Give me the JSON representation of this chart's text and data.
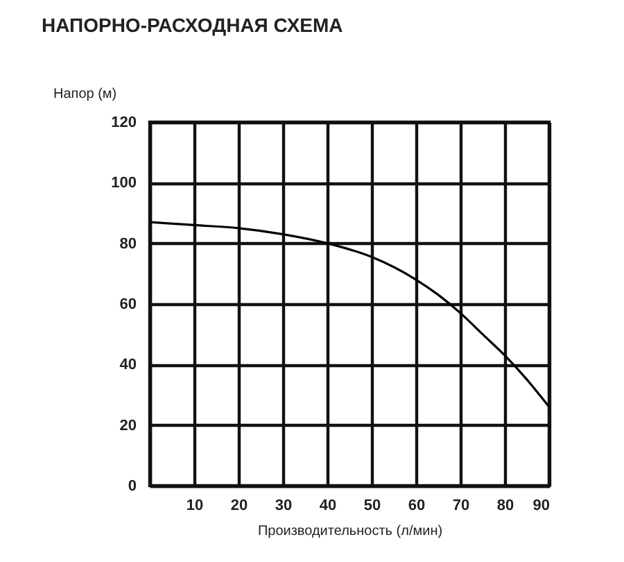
{
  "chart_data": {
    "type": "line",
    "title": "НАПОРНО-РАСХОДНАЯ СХЕМА",
    "xlabel": "Производительность (л/мин)",
    "ylabel": "Напор (м)",
    "x": [
      0,
      10,
      20,
      30,
      40,
      50,
      60,
      65,
      70,
      75,
      80,
      85,
      90
    ],
    "series": [
      {
        "color": "#000000",
        "values": [
          87,
          86,
          85,
          83,
          80,
          75.5,
          68,
          63,
          57,
          50,
          43,
          35,
          26
        ]
      }
    ],
    "xlim": [
      0,
      90
    ],
    "ylim": [
      0,
      120
    ],
    "xticks": [
      {
        "value": 0,
        "label": null
      },
      10,
      20,
      30,
      40,
      50,
      60,
      70,
      80,
      90
    ],
    "yticks": [
      0,
      20,
      40,
      60,
      80,
      100,
      120
    ],
    "grid": true,
    "legend": false,
    "marker": "none",
    "line_style": "solid"
  }
}
